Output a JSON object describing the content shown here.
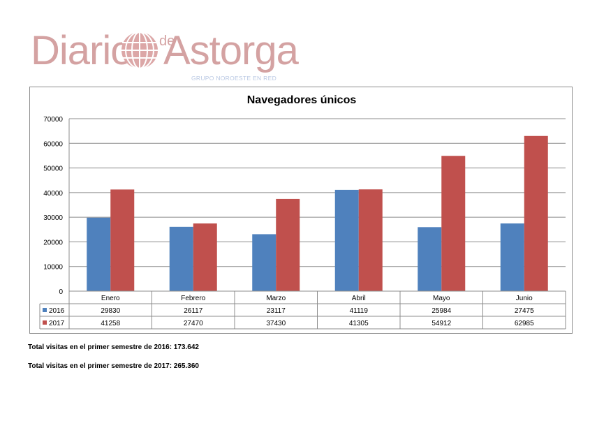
{
  "logo": {
    "word_left": "Diario",
    "word_de": "de",
    "word_right": "Astorga",
    "subtitle": "GRUPO NOROESTE EN RED",
    "color": "#d4a2a2"
  },
  "chart_data": {
    "type": "bar",
    "title": "Navegadores únicos",
    "categories": [
      "Enero",
      "Febrero",
      "Marzo",
      "Abril",
      "Mayo",
      "Junio"
    ],
    "series": [
      {
        "name": "2016",
        "color": "#4f81bd",
        "values": [
          29830,
          26117,
          23117,
          41119,
          25984,
          27475
        ]
      },
      {
        "name": "2017",
        "color": "#c0504d",
        "values": [
          41258,
          27470,
          37430,
          41305,
          54912,
          62985
        ]
      }
    ],
    "ylim": [
      0,
      70000
    ],
    "yticks": [
      "0",
      "10000",
      "20000",
      "30000",
      "40000",
      "50000",
      "60000",
      "70000"
    ],
    "grid": true,
    "legend": "data-table"
  },
  "totals": [
    "Total visitas en el primer semestre de 2016: 173.642",
    "Total visitas en el primer semestre de 2017: 265.360"
  ]
}
